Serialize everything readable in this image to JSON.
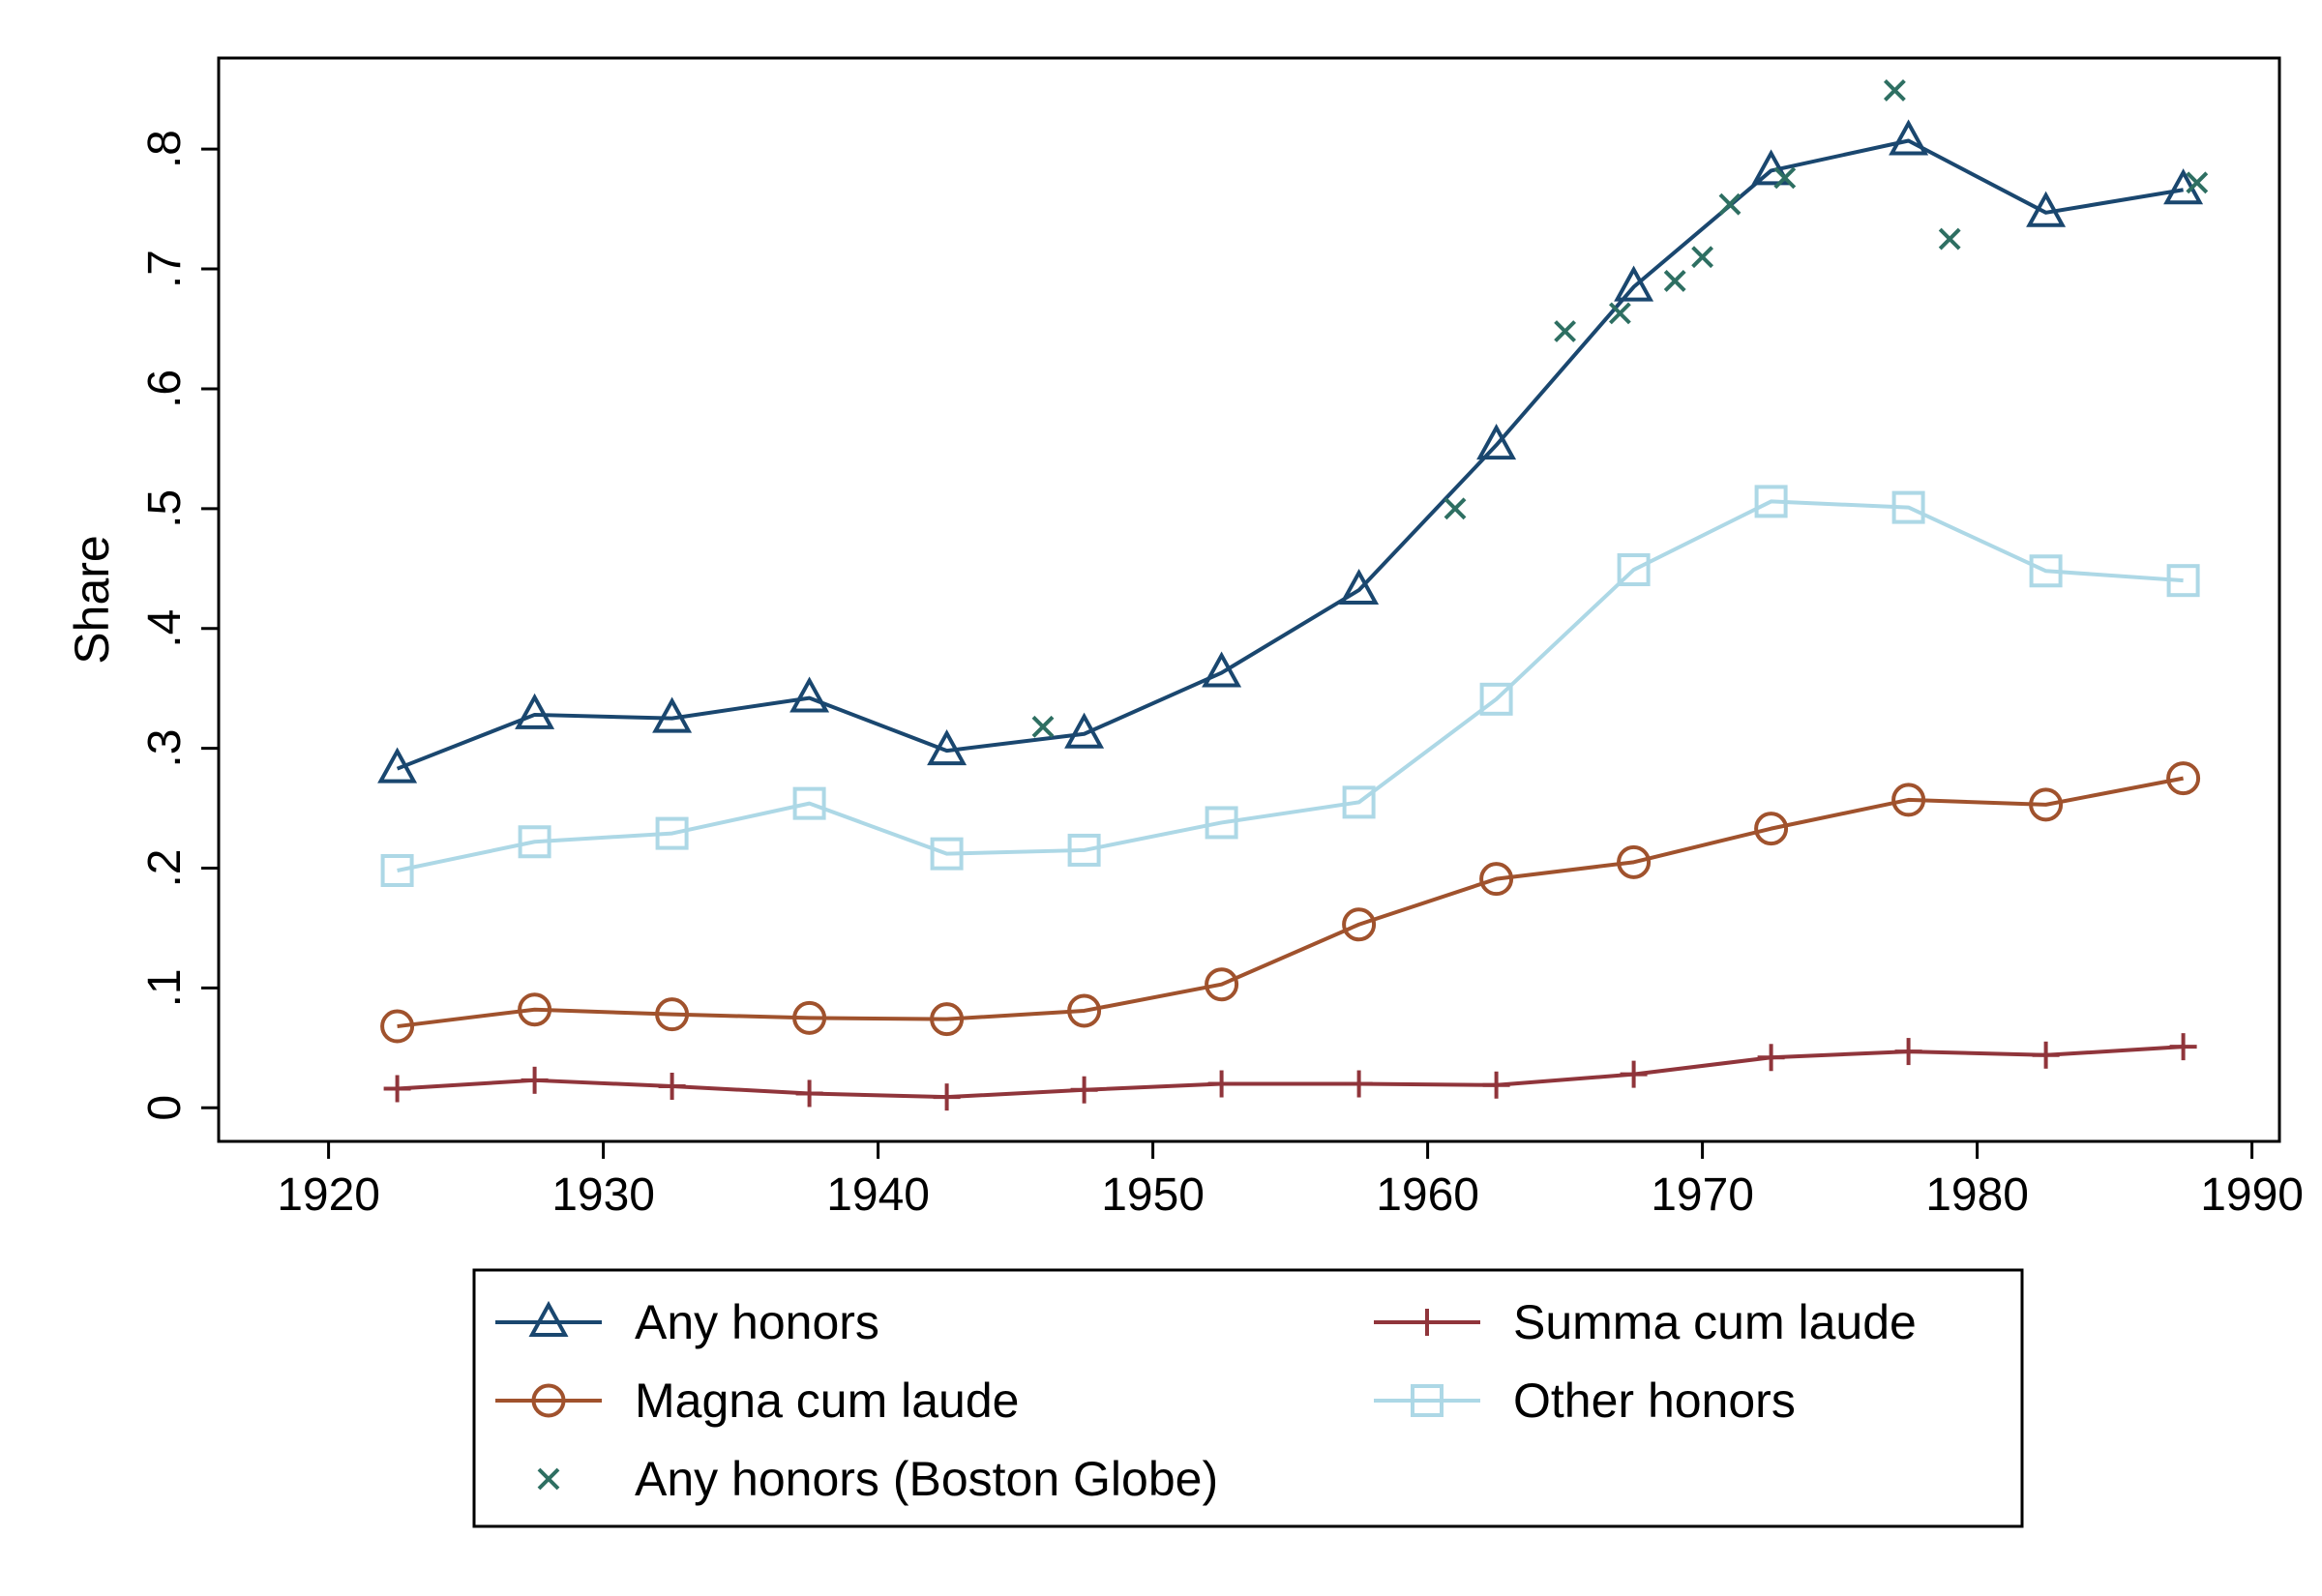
{
  "chart_data": {
    "type": "line",
    "title": "",
    "xlabel": "",
    "ylabel": "Share",
    "xlim": [
      1916,
      1991
    ],
    "ylim": [
      -0.028,
      0.876
    ],
    "x_ticks": [
      1920,
      1930,
      1940,
      1950,
      1960,
      1970,
      1980,
      1990
    ],
    "x_tick_labels": [
      "1920",
      "1930",
      "1940",
      "1950",
      "1960",
      "1970",
      "1980",
      "1990"
    ],
    "y_ticks": [
      0,
      0.1,
      0.2,
      0.3,
      0.4,
      0.5,
      0.6,
      0.7,
      0.8
    ],
    "y_tick_labels": [
      "0",
      ".1",
      ".2",
      ".3",
      ".4",
      ".5",
      ".6",
      ".7",
      ".8"
    ],
    "grid": false,
    "legend_position": "bottom",
    "series": [
      {
        "name": "Any honors",
        "color": "#1a476f",
        "marker": "triangle",
        "x": [
          1922.5,
          1927.5,
          1932.5,
          1937.5,
          1942.5,
          1947.5,
          1952.5,
          1957.5,
          1962.5,
          1967.5,
          1972.5,
          1977.5,
          1982.5,
          1987.5
        ],
        "y": [
          0.283,
          0.328,
          0.325,
          0.342,
          0.298,
          0.312,
          0.363,
          0.432,
          0.553,
          0.685,
          0.782,
          0.807,
          0.747,
          0.766
        ]
      },
      {
        "name": "Summa cum laude",
        "color": "#90353b",
        "marker": "plus",
        "x": [
          1922.5,
          1927.5,
          1932.5,
          1937.5,
          1942.5,
          1947.5,
          1952.5,
          1957.5,
          1962.5,
          1967.5,
          1972.5,
          1977.5,
          1982.5,
          1987.5
        ],
        "y": [
          0.016,
          0.023,
          0.018,
          0.012,
          0.009,
          0.015,
          0.02,
          0.02,
          0.019,
          0.028,
          0.042,
          0.047,
          0.044,
          0.051
        ]
      },
      {
        "name": "Magna cum laude",
        "color": "#a0522d",
        "marker": "circle",
        "x": [
          1922.5,
          1927.5,
          1932.5,
          1937.5,
          1942.5,
          1947.5,
          1952.5,
          1957.5,
          1962.5,
          1967.5,
          1972.5,
          1977.5,
          1982.5,
          1987.5
        ],
        "y": [
          0.068,
          0.082,
          0.078,
          0.075,
          0.074,
          0.081,
          0.103,
          0.153,
          0.191,
          0.205,
          0.233,
          0.257,
          0.253,
          0.275
        ]
      },
      {
        "name": "Other honors",
        "color": "#add8e6",
        "marker": "square",
        "x": [
          1922.5,
          1927.5,
          1932.5,
          1937.5,
          1942.5,
          1947.5,
          1952.5,
          1957.5,
          1962.5,
          1967.5,
          1972.5,
          1977.5,
          1982.5,
          1987.5
        ],
        "y": [
          0.198,
          0.222,
          0.229,
          0.254,
          0.212,
          0.215,
          0.238,
          0.255,
          0.341,
          0.449,
          0.506,
          0.501,
          0.448,
          0.44
        ]
      },
      {
        "name": "Any honors (Boston Globe)",
        "color": "#2e6f62",
        "marker": "x",
        "scatter": true,
        "x": [
          1946,
          1961,
          1965,
          1967,
          1969,
          1970,
          1971,
          1973,
          1977,
          1979,
          1988
        ],
        "y": [
          0.318,
          0.5,
          0.648,
          0.663,
          0.69,
          0.71,
          0.754,
          0.776,
          0.849,
          0.725,
          0.772
        ]
      }
    ]
  }
}
